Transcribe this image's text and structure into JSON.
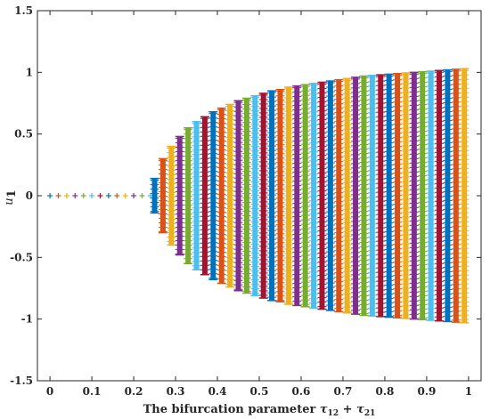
{
  "chart_data": {
    "type": "scatter",
    "title": "",
    "xlabel": "The bifurcation parameter τ12 + τ21",
    "xlabel_parts": {
      "text": "The bifurcation parameter ",
      "tau": "τ",
      "sub1": "12",
      "plus": " + ",
      "sub2": "21"
    },
    "ylabel": "u1",
    "ylabel_parts": {
      "var": "u",
      "sub": "1"
    },
    "xlim": [
      -0.03,
      1.03
    ],
    "ylim": [
      -1.5,
      1.5
    ],
    "x_ticks": [
      0,
      0.1,
      0.2,
      0.3,
      0.4,
      0.5,
      0.6,
      0.7,
      0.8,
      0.9,
      1
    ],
    "x_tick_labels": [
      "0",
      "0.1",
      "0.2",
      "0.3",
      "0.4",
      "0.5",
      "0.6",
      "0.7",
      "0.8",
      "0.9",
      "1"
    ],
    "y_ticks": [
      -1.5,
      -1,
      -0.5,
      0,
      0.5,
      1,
      1.5
    ],
    "y_tick_labels": [
      "-1.5",
      "-1",
      "-0.5",
      "0",
      "0.5",
      "1",
      "1.5"
    ],
    "grid": false,
    "legend": "none",
    "marker": "+",
    "palette": [
      "#0072BD",
      "#D95319",
      "#EDB120",
      "#7E2F8E",
      "#77AC30",
      "#4DBEEE",
      "#A2142F"
    ],
    "stable_branch": {
      "x": [
        0,
        0.02,
        0.04,
        0.06,
        0.08,
        0.1,
        0.12,
        0.14,
        0.16,
        0.18,
        0.2,
        0.22,
        0.24
      ],
      "y": 0
    },
    "oscillation_branch": {
      "x": [
        0.25,
        0.27,
        0.29,
        0.31,
        0.33,
        0.35,
        0.37,
        0.39,
        0.41,
        0.43,
        0.45,
        0.47,
        0.49,
        0.51,
        0.53,
        0.55,
        0.57,
        0.59,
        0.61,
        0.63,
        0.65,
        0.67,
        0.69,
        0.71,
        0.73,
        0.75,
        0.77,
        0.79,
        0.81,
        0.83,
        0.85,
        0.87,
        0.89,
        0.91,
        0.93,
        0.95,
        0.97,
        0.99
      ],
      "amplitude": [
        0.14,
        0.3,
        0.4,
        0.48,
        0.55,
        0.6,
        0.64,
        0.68,
        0.71,
        0.74,
        0.77,
        0.79,
        0.81,
        0.83,
        0.85,
        0.86,
        0.88,
        0.89,
        0.9,
        0.91,
        0.92,
        0.93,
        0.94,
        0.95,
        0.96,
        0.97,
        0.975,
        0.98,
        0.985,
        0.99,
        0.995,
        1.0,
        1.005,
        1.01,
        1.015,
        1.02,
        1.025,
        1.03
      ]
    }
  }
}
